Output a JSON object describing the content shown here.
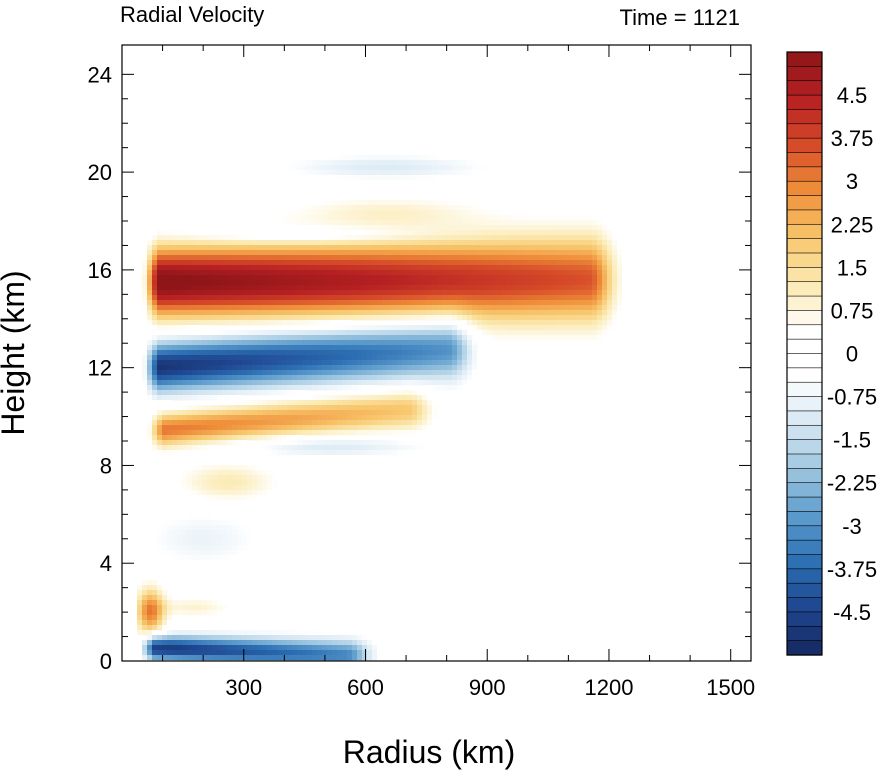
{
  "chart_data": {
    "type": "heatmap",
    "title_left": "Radial Velocity",
    "title_right": "Time = 1121",
    "xlabel": "Radius (km)",
    "ylabel": "Height (km)",
    "xlim": [
      0,
      1550
    ],
    "ylim": [
      0,
      25.2
    ],
    "x_ticks": [
      "300",
      "600",
      "900",
      "1200",
      "1500"
    ],
    "x_tick_values": [
      300,
      600,
      900,
      1200,
      1500
    ],
    "y_ticks": [
      "0",
      "4",
      "8",
      "12",
      "16",
      "20",
      "24"
    ],
    "y_tick_values": [
      0,
      4,
      8,
      12,
      16,
      20,
      24
    ],
    "colorbar": {
      "labels": [
        "4.5",
        "3.75",
        "3",
        "2.25",
        "1.5",
        "0.75",
        "0",
        "-0.75",
        "-1.5",
        "-2.25",
        "-3",
        "-3.75",
        "-4.5"
      ],
      "label_values": [
        4.5,
        3.75,
        3,
        2.25,
        1.5,
        0.75,
        0,
        -0.75,
        -1.5,
        -2.25,
        -3,
        -3.75,
        -4.5
      ],
      "range": [
        -5.25,
        5.25
      ],
      "step": 0.25,
      "colors_low_to_high": [
        "#16295f",
        "#1f4690",
        "#2c6fb3",
        "#5d9ccc",
        "#9ec6e0",
        "#d7e8f3",
        "#ffffff",
        "#ffffff",
        "#fbeab2",
        "#f8c66c",
        "#ef8f3a",
        "#d64b28",
        "#b62023",
        "#8e1518"
      ]
    },
    "features": [
      {
        "name": "upper outflow",
        "sign": 1,
        "amp": 5.5,
        "x_start": 60,
        "x_end": 1150,
        "z_start": 15.5,
        "z_end": 15.6,
        "width": 1.4
      },
      {
        "name": "mid-level inflow",
        "sign": -1,
        "amp": 5.0,
        "x_start": 60,
        "x_end": 800,
        "z_start": 12.0,
        "z_end": 12.8,
        "width": 1.0
      },
      {
        "name": "mid-level outflow",
        "sign": 1,
        "amp": 3.2,
        "x_start": 70,
        "x_end": 700,
        "z_start": 9.4,
        "z_end": 10.3,
        "width": 0.7
      },
      {
        "name": "boundary layer inflow",
        "sign": -1,
        "amp": 5.0,
        "x_start": 50,
        "x_end": 550,
        "z_start": 0.55,
        "z_end": 0.25,
        "width": 0.5
      }
    ]
  }
}
